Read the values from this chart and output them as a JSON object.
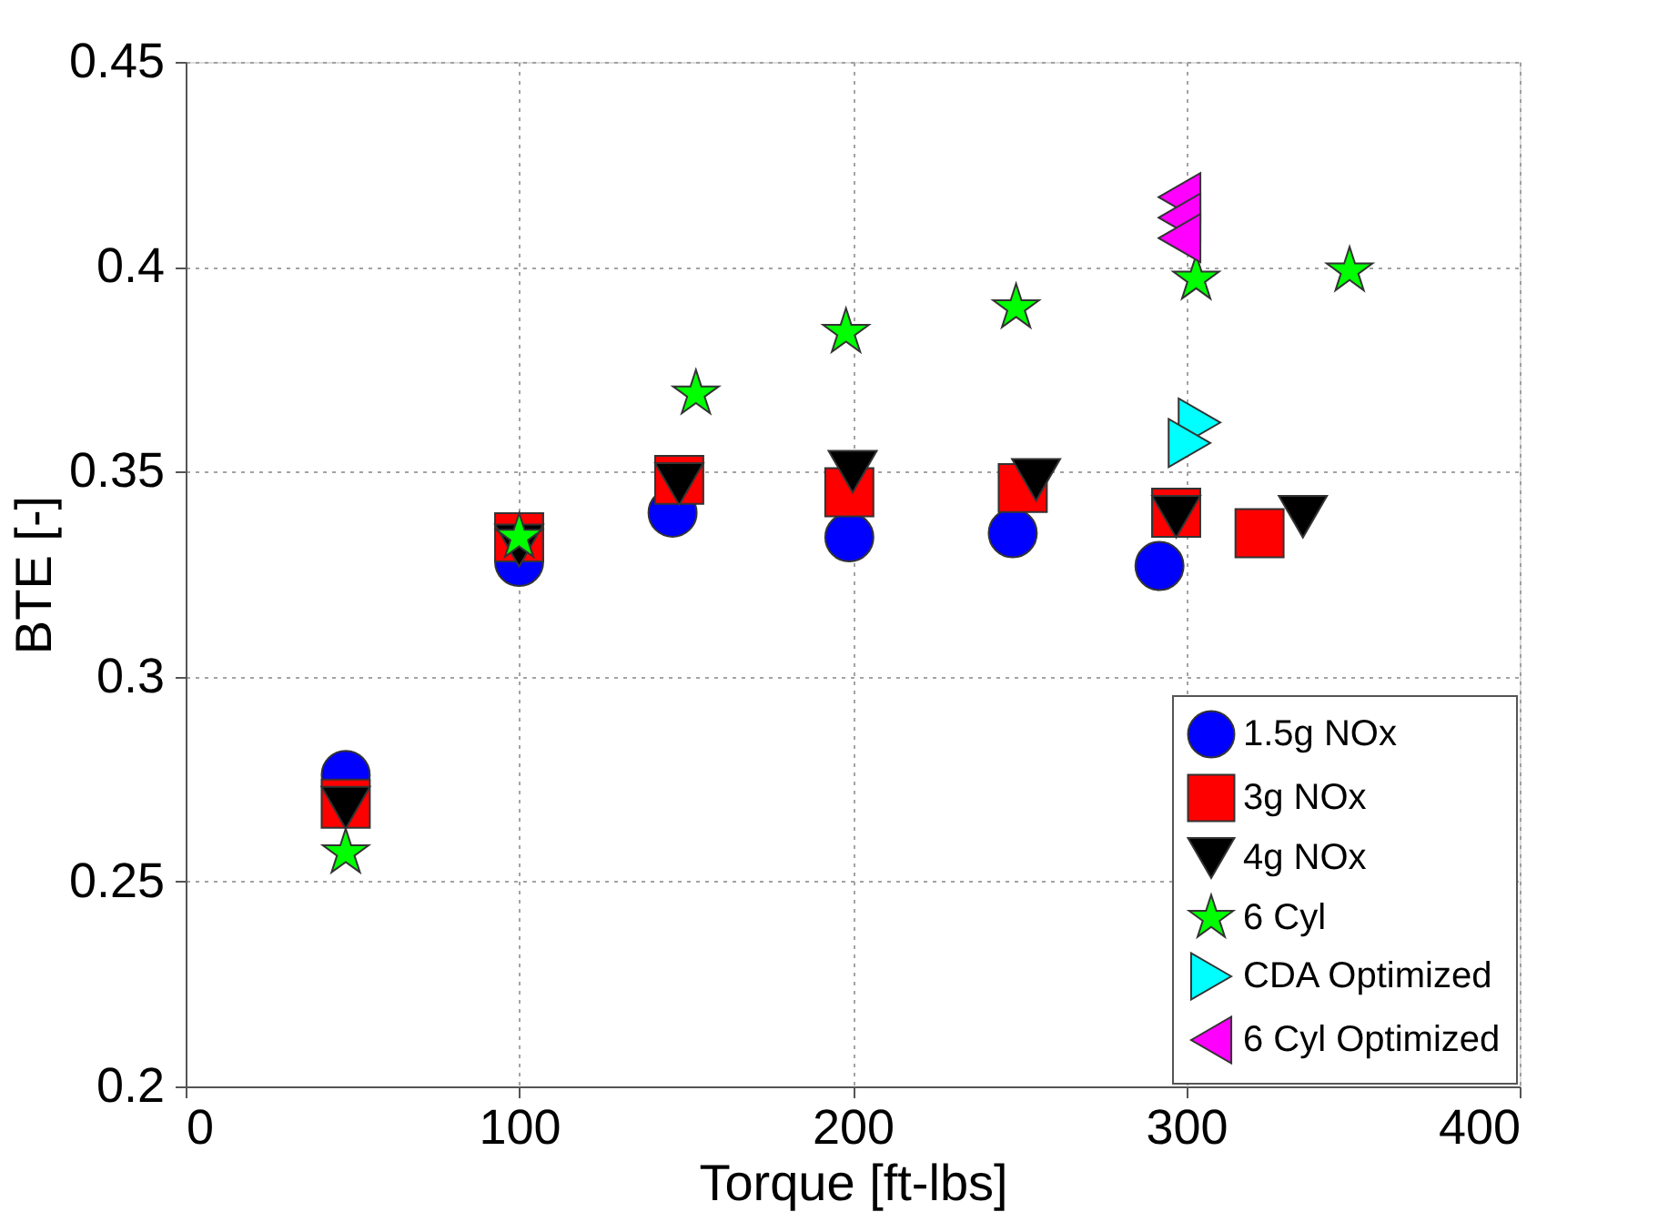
{
  "chart_data": {
    "type": "scatter",
    "xlabel": "Torque [ft-lbs]",
    "ylabel": "BTE [-]",
    "xlim": [
      0,
      400
    ],
    "xticks": [
      0,
      100,
      200,
      300,
      400
    ],
    "ylim": [
      0.2,
      0.45
    ],
    "yticks": [
      0.2,
      0.25,
      0.3,
      0.35,
      0.4,
      0.45
    ],
    "grid": true,
    "legend": "bottom right",
    "series": [
      {
        "name": "1.5g NOx",
        "color": "#0000ff",
        "marker": "circle",
        "x": [
          48,
          100,
          146,
          199,
          248,
          292
        ],
        "values": [
          0.276,
          0.328,
          0.34,
          0.334,
          0.335,
          0.327
        ]
      },
      {
        "name": "3g NOx",
        "color": "#ff0000",
        "marker": "square",
        "x": [
          48,
          100,
          148,
          199,
          251,
          297,
          322
        ],
        "values": [
          0.269,
          0.334,
          0.348,
          0.345,
          0.346,
          0.34,
          0.335
        ]
      },
      {
        "name": "4g NOx",
        "color": "#000000",
        "marker": "triangle-down",
        "x": [
          48,
          100,
          148,
          200,
          255,
          297,
          335
        ],
        "values": [
          0.268,
          0.332,
          0.347,
          0.35,
          0.348,
          0.339,
          0.339
        ]
      },
      {
        "name": "6 Cyl",
        "color": "#00ff00",
        "marker": "star",
        "x": [
          48,
          100,
          153,
          198,
          249,
          303,
          349
        ],
        "values": [
          0.257,
          0.334,
          0.369,
          0.384,
          0.39,
          0.397,
          0.399
        ]
      },
      {
        "name": "CDA Optimized",
        "color": "#00ffff",
        "marker": "triangle-right",
        "x": [
          304,
          301
        ],
        "values": [
          0.362,
          0.357
        ]
      },
      {
        "name": "6 Cyl Optimized",
        "color": "#ff00ff",
        "marker": "triangle-left",
        "x": [
          298,
          298,
          298
        ],
        "values": [
          0.417,
          0.412,
          0.407
        ]
      }
    ]
  }
}
